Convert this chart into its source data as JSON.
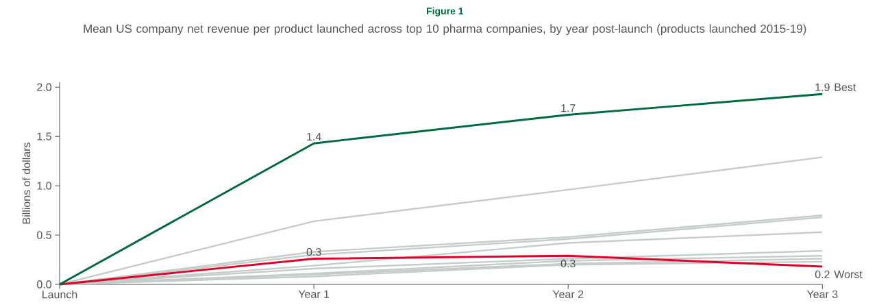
{
  "chart_data": {
    "type": "line",
    "title": "Figure 1",
    "subtitle": "Mean US company net revenue per product launched across top 10 pharma companies, by year post-launch (products launched 2015-19)",
    "ylabel": "Billions of dollars",
    "categories": [
      "Launch",
      "Year 1",
      "Year 2",
      "Year 3"
    ],
    "series": [
      {
        "color": "#c5cdc9",
        "values": [
          0,
          0.64,
          0.96,
          1.29
        ]
      },
      {
        "color": "#c5cdc9",
        "values": [
          0,
          0.33,
          0.48,
          0.7
        ]
      },
      {
        "color": "#c5cdc9",
        "values": [
          0,
          0.3,
          0.46,
          0.68
        ]
      },
      {
        "color": "#c5cdc9",
        "values": [
          0,
          0.19,
          0.42,
          0.53
        ]
      },
      {
        "color": "#c5cdc9",
        "values": [
          0,
          0.16,
          0.26,
          0.34
        ]
      },
      {
        "color": "#c5cdc9",
        "values": [
          0,
          0.11,
          0.24,
          0.29
        ]
      },
      {
        "color": "#c5cdc9",
        "values": [
          0,
          0.1,
          0.21,
          0.26
        ]
      },
      {
        "color": "#c5cdc9",
        "values": [
          0,
          0.08,
          0.2,
          0.23
        ]
      },
      {
        "name": "Worst",
        "color": "#e4002b",
        "values": [
          0,
          0.26,
          0.29,
          0.18
        ],
        "value_labels": [
          null,
          "0.3",
          "0.3",
          "0.2"
        ]
      },
      {
        "name": "Best",
        "color": "#006b3c",
        "values": [
          0,
          1.43,
          1.72,
          1.93
        ],
        "value_labels": [
          null,
          "1.4",
          "1.7",
          "1.9"
        ]
      }
    ],
    "ylim": [
      0,
      2.05
    ],
    "yticks": [
      {
        "value": 0,
        "label": "0.0"
      },
      {
        "value": 0.5,
        "label": "0.5"
      },
      {
        "value": 1,
        "label": "1.0"
      },
      {
        "value": 1.5,
        "label": "1.5"
      },
      {
        "value": 2,
        "label": "2.0"
      }
    ]
  }
}
